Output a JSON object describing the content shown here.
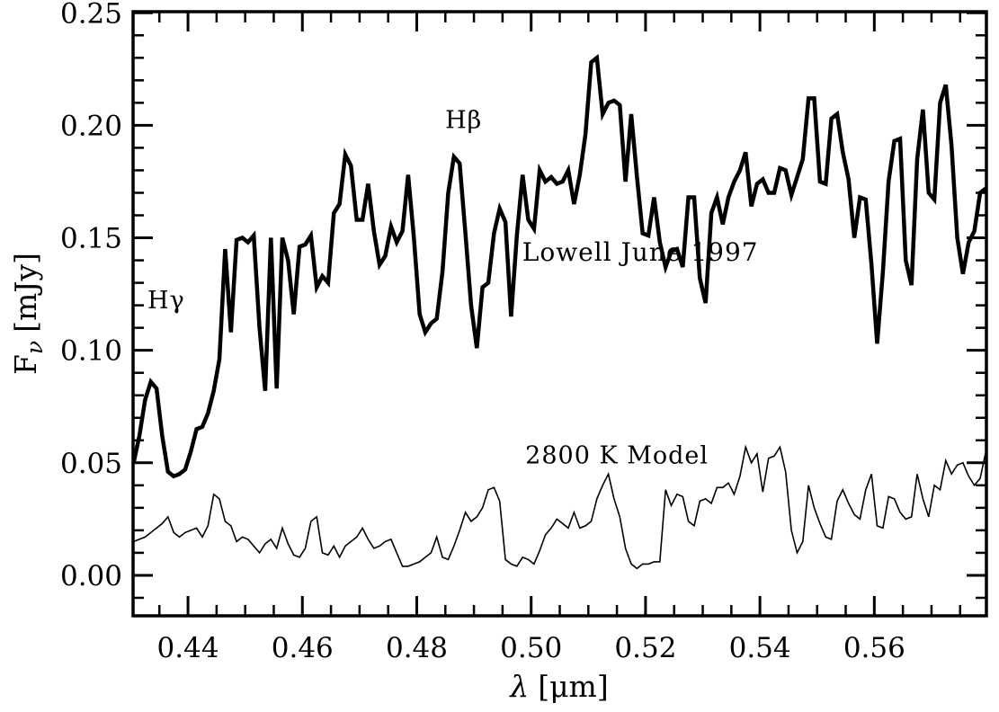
{
  "figure": {
    "background": "#ffffff",
    "ink": "#000000"
  },
  "chart_data": {
    "type": "line",
    "title": "",
    "xlabel": "λ [μm]",
    "xlabel_parts": {
      "symbol": "λ",
      "unit": "[μm]"
    },
    "ylabel": "Fν [mJy]",
    "ylabel_parts": {
      "main": "F",
      "sub": "ν",
      "unit": "[mJy]"
    },
    "xlim": [
      0.4304,
      0.5796
    ],
    "ylim": [
      -0.018,
      0.2505
    ],
    "grid": false,
    "legend_position": "inline-annotations",
    "x_major_ticks": [
      0.44,
      0.46,
      0.48,
      0.5,
      0.52,
      0.54,
      0.56
    ],
    "x_major_labels": [
      "0.44",
      "0.46",
      "0.48",
      "0.50",
      "0.52",
      "0.54",
      "0.56"
    ],
    "x_minor_step": 0.005,
    "y_major_ticks": [
      0.0,
      0.05,
      0.1,
      0.15,
      0.2,
      0.25
    ],
    "y_major_labels": [
      "0.00",
      "0.05",
      "0.10",
      "0.15",
      "0.20",
      "0.25"
    ],
    "y_minor_step": 0.01,
    "x": [
      0.4305,
      0.4315,
      0.4325,
      0.4335,
      0.4345,
      0.4355,
      0.4365,
      0.4375,
      0.4385,
      0.4395,
      0.4405,
      0.4415,
      0.4425,
      0.4435,
      0.4445,
      0.4455,
      0.4465,
      0.4475,
      0.4485,
      0.4495,
      0.4505,
      0.4515,
      0.4525,
      0.4535,
      0.4545,
      0.4555,
      0.4565,
      0.4575,
      0.4585,
      0.4595,
      0.4605,
      0.4615,
      0.4625,
      0.4635,
      0.4645,
      0.4655,
      0.4665,
      0.4675,
      0.4685,
      0.4695,
      0.4705,
      0.4715,
      0.4725,
      0.4735,
      0.4745,
      0.4755,
      0.4765,
      0.4775,
      0.4785,
      0.4795,
      0.4805,
      0.4815,
      0.4825,
      0.4835,
      0.4845,
      0.4855,
      0.4865,
      0.4875,
      0.4885,
      0.4895,
      0.4905,
      0.4915,
      0.4925,
      0.4935,
      0.4945,
      0.4955,
      0.4965,
      0.4975,
      0.4985,
      0.4995,
      0.5005,
      0.5015,
      0.5025,
      0.5035,
      0.5045,
      0.5055,
      0.5065,
      0.5075,
      0.5085,
      0.5095,
      0.5105,
      0.5115,
      0.5125,
      0.5135,
      0.5145,
      0.5155,
      0.5165,
      0.5175,
      0.5185,
      0.5195,
      0.5205,
      0.5215,
      0.5225,
      0.5235,
      0.5245,
      0.5255,
      0.5265,
      0.5275,
      0.5285,
      0.5295,
      0.5305,
      0.5315,
      0.5325,
      0.5335,
      0.5345,
      0.5355,
      0.5365,
      0.5375,
      0.5385,
      0.5395,
      0.5405,
      0.5415,
      0.5425,
      0.5435,
      0.5445,
      0.5455,
      0.5465,
      0.5475,
      0.5485,
      0.5495,
      0.5505,
      0.5515,
      0.5525,
      0.5535,
      0.5545,
      0.5555,
      0.5565,
      0.5575,
      0.5585,
      0.5595,
      0.5605,
      0.5615,
      0.5625,
      0.5635,
      0.5645,
      0.5655,
      0.5665,
      0.5675,
      0.5685,
      0.5695,
      0.5705,
      0.5715,
      0.5725,
      0.5735,
      0.5745,
      0.5755,
      0.5765,
      0.5775,
      0.5785,
      0.5795
    ],
    "series": [
      {
        "name": "Lowell June 1997",
        "stroke_width": 4.5,
        "values": [
          0.05,
          0.062,
          0.078,
          0.086,
          0.083,
          0.062,
          0.046,
          0.044,
          0.045,
          0.047,
          0.055,
          0.065,
          0.066,
          0.072,
          0.082,
          0.096,
          0.145,
          0.108,
          0.149,
          0.15,
          0.148,
          0.151,
          0.11,
          0.082,
          0.15,
          0.083,
          0.15,
          0.14,
          0.116,
          0.146,
          0.147,
          0.151,
          0.128,
          0.133,
          0.13,
          0.161,
          0.165,
          0.187,
          0.182,
          0.158,
          0.158,
          0.174,
          0.153,
          0.138,
          0.142,
          0.155,
          0.148,
          0.153,
          0.178,
          0.15,
          0.116,
          0.108,
          0.112,
          0.114,
          0.135,
          0.17,
          0.186,
          0.183,
          0.152,
          0.12,
          0.101,
          0.128,
          0.13,
          0.152,
          0.163,
          0.157,
          0.115,
          0.151,
          0.178,
          0.158,
          0.154,
          0.18,
          0.175,
          0.177,
          0.174,
          0.175,
          0.18,
          0.165,
          0.178,
          0.196,
          0.228,
          0.23,
          0.205,
          0.21,
          0.211,
          0.209,
          0.175,
          0.205,
          0.177,
          0.152,
          0.151,
          0.168,
          0.148,
          0.137,
          0.144,
          0.145,
          0.137,
          0.168,
          0.168,
          0.132,
          0.121,
          0.161,
          0.168,
          0.156,
          0.168,
          0.175,
          0.18,
          0.188,
          0.164,
          0.174,
          0.176,
          0.17,
          0.17,
          0.181,
          0.18,
          0.169,
          0.177,
          0.185,
          0.212,
          0.212,
          0.175,
          0.174,
          0.203,
          0.205,
          0.188,
          0.176,
          0.15,
          0.168,
          0.167,
          0.138,
          0.103,
          0.135,
          0.175,
          0.193,
          0.194,
          0.14,
          0.129,
          0.185,
          0.207,
          0.17,
          0.167,
          0.21,
          0.218,
          0.191,
          0.15,
          0.134,
          0.148,
          0.153,
          0.17,
          0.172
        ]
      },
      {
        "name": "2800 K Model",
        "stroke_width": 1.6,
        "values": [
          0.015,
          0.016,
          0.017,
          0.019,
          0.021,
          0.023,
          0.026,
          0.019,
          0.017,
          0.019,
          0.02,
          0.021,
          0.017,
          0.022,
          0.036,
          0.034,
          0.024,
          0.022,
          0.015,
          0.017,
          0.016,
          0.013,
          0.01,
          0.014,
          0.016,
          0.012,
          0.021,
          0.014,
          0.009,
          0.008,
          0.012,
          0.024,
          0.026,
          0.01,
          0.009,
          0.013,
          0.008,
          0.013,
          0.015,
          0.017,
          0.021,
          0.016,
          0.012,
          0.013,
          0.015,
          0.016,
          0.01,
          0.004,
          0.004,
          0.005,
          0.006,
          0.008,
          0.01,
          0.017,
          0.008,
          0.007,
          0.013,
          0.02,
          0.028,
          0.024,
          0.026,
          0.03,
          0.038,
          0.039,
          0.033,
          0.007,
          0.005,
          0.004,
          0.008,
          0.007,
          0.005,
          0.011,
          0.018,
          0.021,
          0.025,
          0.023,
          0.021,
          0.028,
          0.021,
          0.022,
          0.024,
          0.034,
          0.04,
          0.045,
          0.034,
          0.026,
          0.012,
          0.005,
          0.003,
          0.005,
          0.005,
          0.006,
          0.006,
          0.038,
          0.031,
          0.036,
          0.035,
          0.024,
          0.022,
          0.033,
          0.034,
          0.032,
          0.039,
          0.039,
          0.041,
          0.036,
          0.044,
          0.057,
          0.05,
          0.054,
          0.037,
          0.052,
          0.053,
          0.057,
          0.046,
          0.02,
          0.01,
          0.015,
          0.04,
          0.03,
          0.023,
          0.017,
          0.016,
          0.033,
          0.038,
          0.032,
          0.027,
          0.025,
          0.038,
          0.045,
          0.022,
          0.021,
          0.035,
          0.034,
          0.028,
          0.025,
          0.026,
          0.045,
          0.034,
          0.026,
          0.04,
          0.038,
          0.051,
          0.045,
          0.049,
          0.05,
          0.044,
          0.04,
          0.043,
          0.055
        ]
      }
    ],
    "annotations": [
      {
        "text": "Hγ",
        "x": 0.4362,
        "y": 0.1225,
        "font_size": 27
      },
      {
        "text": "Hβ",
        "x": 0.4882,
        "y": 0.2025,
        "font_size": 27
      },
      {
        "text": "Lowell June 1997",
        "x": 0.5191,
        "y": 0.1437,
        "font_size": 28
      },
      {
        "text": "2800 K Model",
        "x": 0.515,
        "y": 0.0535,
        "font_size": 27
      }
    ]
  }
}
